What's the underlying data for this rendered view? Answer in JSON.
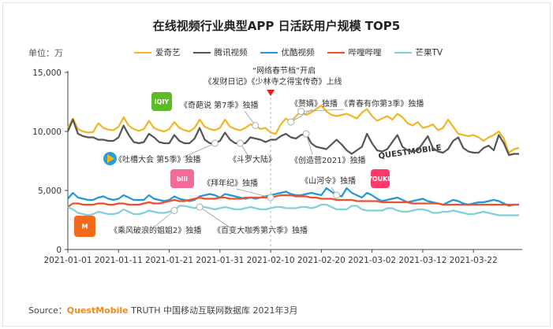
{
  "title": "在线视频行业典型APP 日活跃用户规模 TOP5",
  "unit": "单位：万",
  "source": {
    "prefix": "Source：",
    "brand": "QuestMobile",
    "suffix": " TRUTH 中国移动互联网数据库 2021年3月"
  },
  "watermark": "QUESTMOBILE",
  "chart_data": {
    "type": "line",
    "title": "在线视频行业典型APP 日活跃用户规模 TOP5",
    "ylabel": "单位：万",
    "ylim": [
      0,
      15000
    ],
    "yticks": [
      "0",
      "5,000",
      "10,000",
      "15,000"
    ],
    "xticks": [
      "2021-01-01",
      "2021-01-11",
      "2021-01-21",
      "2021-01-31",
      "2021-02-10",
      "2021-02-20",
      "2021-03-02",
      "2021-03-12",
      "2021-03-22"
    ],
    "x_start": "2021-01-01",
    "x_end": "2021-03-31",
    "legend_position": "top",
    "grid": false,
    "series": [
      {
        "name": "爱奇艺",
        "color": "#f3b523",
        "values": [
          10300,
          11100,
          10200,
          10000,
          9900,
          9950,
          10700,
          10300,
          10150,
          10100,
          10400,
          11200,
          10500,
          10200,
          10050,
          10200,
          10900,
          10300,
          10100,
          10000,
          10200,
          10800,
          10300,
          10100,
          10000,
          10300,
          11000,
          10400,
          10200,
          10100,
          10300,
          11000,
          10400,
          10200,
          10100,
          10300,
          10600,
          10500,
          10200,
          10300,
          9900,
          9800,
          10600,
          11100,
          10800,
          11300,
          11700,
          11400,
          11600,
          11900,
          12200,
          11700,
          11400,
          11300,
          11400,
          11500,
          11300,
          11100,
          11600,
          11900,
          11300,
          10900,
          11100,
          11300,
          11000,
          11500,
          11200,
          10700,
          10500,
          10800,
          10300,
          10400,
          10600,
          10100,
          10300,
          11000,
          10400,
          9800,
          9700,
          9600,
          9700,
          9500,
          9200,
          9500,
          9700,
          10000,
          9400,
          8200,
          8500,
          8600
        ]
      },
      {
        "name": "腾讯视频",
        "color": "#555555",
        "values": [
          10000,
          11000,
          9800,
          9600,
          9500,
          9500,
          9300,
          9300,
          9200,
          9200,
          9500,
          10500,
          9700,
          9100,
          9000,
          9100,
          9800,
          9500,
          9100,
          9000,
          9000,
          9700,
          9200,
          9000,
          9000,
          9400,
          10300,
          9300,
          9000,
          9000,
          9200,
          9900,
          9300,
          9000,
          9000,
          9000,
          9500,
          9400,
          9300,
          9100,
          9300,
          9300,
          9600,
          9800,
          9500,
          9400,
          9700,
          9800,
          9000,
          8700,
          8600,
          8500,
          8900,
          9300,
          8900,
          8400,
          8100,
          8400,
          8700,
          9800,
          9000,
          8400,
          8300,
          8500,
          9100,
          9700,
          8700,
          8400,
          8300,
          8400,
          9000,
          9600,
          8600,
          8300,
          8200,
          8500,
          9200,
          9500,
          8600,
          8300,
          8200,
          8200,
          8600,
          8800,
          8400,
          9700,
          9000,
          8000,
          8100,
          8100
        ]
      },
      {
        "name": "优酷视频",
        "color": "#2196d8",
        "values": [
          4300,
          4800,
          4400,
          4300,
          4200,
          4200,
          4400,
          4500,
          4300,
          4200,
          4300,
          4600,
          4400,
          4200,
          4200,
          4200,
          4600,
          4300,
          4200,
          4100,
          4200,
          4500,
          4300,
          4200,
          4100,
          4200,
          4500,
          4600,
          4700,
          4600,
          4400,
          4700,
          4600,
          4500,
          4400,
          4300,
          4400,
          4300,
          4400,
          4500,
          4600,
          4700,
          4800,
          4900,
          4700,
          4600,
          4600,
          4700,
          4800,
          4700,
          4600,
          5200,
          4900,
          4600,
          4500,
          5200,
          4800,
          4600,
          4400,
          4800,
          4600,
          4300,
          4100,
          4200,
          4300,
          4400,
          4200,
          4000,
          4100,
          4200,
          4300,
          4100,
          4000,
          3900,
          3800,
          4000,
          4200,
          4100,
          3900,
          3800,
          3900,
          4000,
          4000,
          4100,
          4200,
          4100,
          3900,
          3700,
          3800,
          3800
        ]
      },
      {
        "name": "哔哩哔哩",
        "color": "#ef4f2a",
        "values": [
          3600,
          3900,
          3900,
          3800,
          3800,
          3800,
          3900,
          3900,
          3800,
          3800,
          3900,
          3900,
          3800,
          3800,
          3800,
          3900,
          4000,
          3900,
          3900,
          4000,
          4100,
          4200,
          4100,
          4100,
          4200,
          4300,
          4400,
          4300,
          4300,
          4300,
          4400,
          4400,
          4300,
          4300,
          4300,
          4400,
          4400,
          4400,
          4400,
          4400,
          4400,
          4500,
          4600,
          4600,
          4600,
          4500,
          4500,
          4500,
          4400,
          4400,
          4300,
          4300,
          4300,
          4200,
          4200,
          4200,
          4200,
          4100,
          4100,
          4100,
          4100,
          4100,
          4000,
          4000,
          4000,
          4000,
          4000,
          4000,
          3900,
          3900,
          3900,
          3900,
          3900,
          3900,
          3800,
          3800,
          3800,
          3800,
          3800,
          3800,
          3800,
          3800,
          3800,
          3800,
          3800,
          3800,
          3800,
          3800,
          3800,
          3800
        ]
      },
      {
        "name": "芒果TV",
        "color": "#7fd0dc",
        "values": [
          3600,
          3400,
          3100,
          3000,
          2900,
          3000,
          3200,
          3100,
          3000,
          3000,
          3100,
          3400,
          3200,
          3000,
          3000,
          3100,
          3300,
          3200,
          3100,
          3100,
          3200,
          3300,
          3700,
          3700,
          3600,
          3500,
          3600,
          3600,
          3500,
          3400,
          3500,
          3600,
          3500,
          3400,
          3400,
          3500,
          3600,
          3500,
          3400,
          3400,
          3500,
          3600,
          3600,
          3500,
          3500,
          3500,
          3600,
          3600,
          3500,
          3600,
          3800,
          3800,
          3600,
          3400,
          3400,
          3400,
          3700,
          3700,
          3400,
          3300,
          3300,
          3300,
          3300,
          3500,
          3500,
          3300,
          3200,
          3200,
          3300,
          3400,
          3400,
          3300,
          3100,
          3100,
          3200,
          3200,
          3300,
          3200,
          3100,
          3000,
          3000,
          3100,
          3200,
          3100,
          3000,
          2900,
          2900,
          2900,
          2900,
          2900
        ]
      }
    ],
    "annotations": [
      {
        "text": "“网络春节档”开启",
        "series": "",
        "day": null
      },
      {
        "text": "《发财日记》《少林寺之得宝传奇》上线",
        "series": "",
        "day": null
      },
      {
        "text": "《奇葩说 第7季》独播",
        "series": "爱奇艺",
        "day": 37
      },
      {
        "text": "《赘婿》独播",
        "series": "爱奇艺",
        "day": 44
      },
      {
        "text": "《青春有你第3季》独播",
        "series": "爱奇艺",
        "day": 46
      },
      {
        "text": "《吐槽大会 第5季》独播",
        "series": "腾讯视频",
        "day": 29
      },
      {
        "text": "《斗罗大陆》",
        "series": "腾讯视频",
        "day": 34
      },
      {
        "text": "《创造营2021》独播",
        "series": "腾讯视频",
        "day": 47
      },
      {
        "text": "《拜年纪》独播",
        "series": "哔哩哔哩",
        "day": 40
      },
      {
        "text": "《山河令》独播",
        "series": "优酷视频",
        "day": 53
      },
      {
        "text": "《乘风破浪的姐姐2》独播",
        "series": "芒果TV",
        "day": 21
      },
      {
        "text": "《百变大咖秀第六季》独播",
        "series": "芒果TV",
        "day": 26
      }
    ],
    "logos": [
      {
        "name": "iqiyi-logo",
        "text": "iQIY"
      },
      {
        "name": "tencent-video-logo",
        "text": ""
      },
      {
        "name": "bilibili-logo",
        "text": "bili"
      },
      {
        "name": "youku-logo",
        "text": "YOUKU"
      },
      {
        "name": "mgtv-logo",
        "text": ""
      }
    ]
  }
}
